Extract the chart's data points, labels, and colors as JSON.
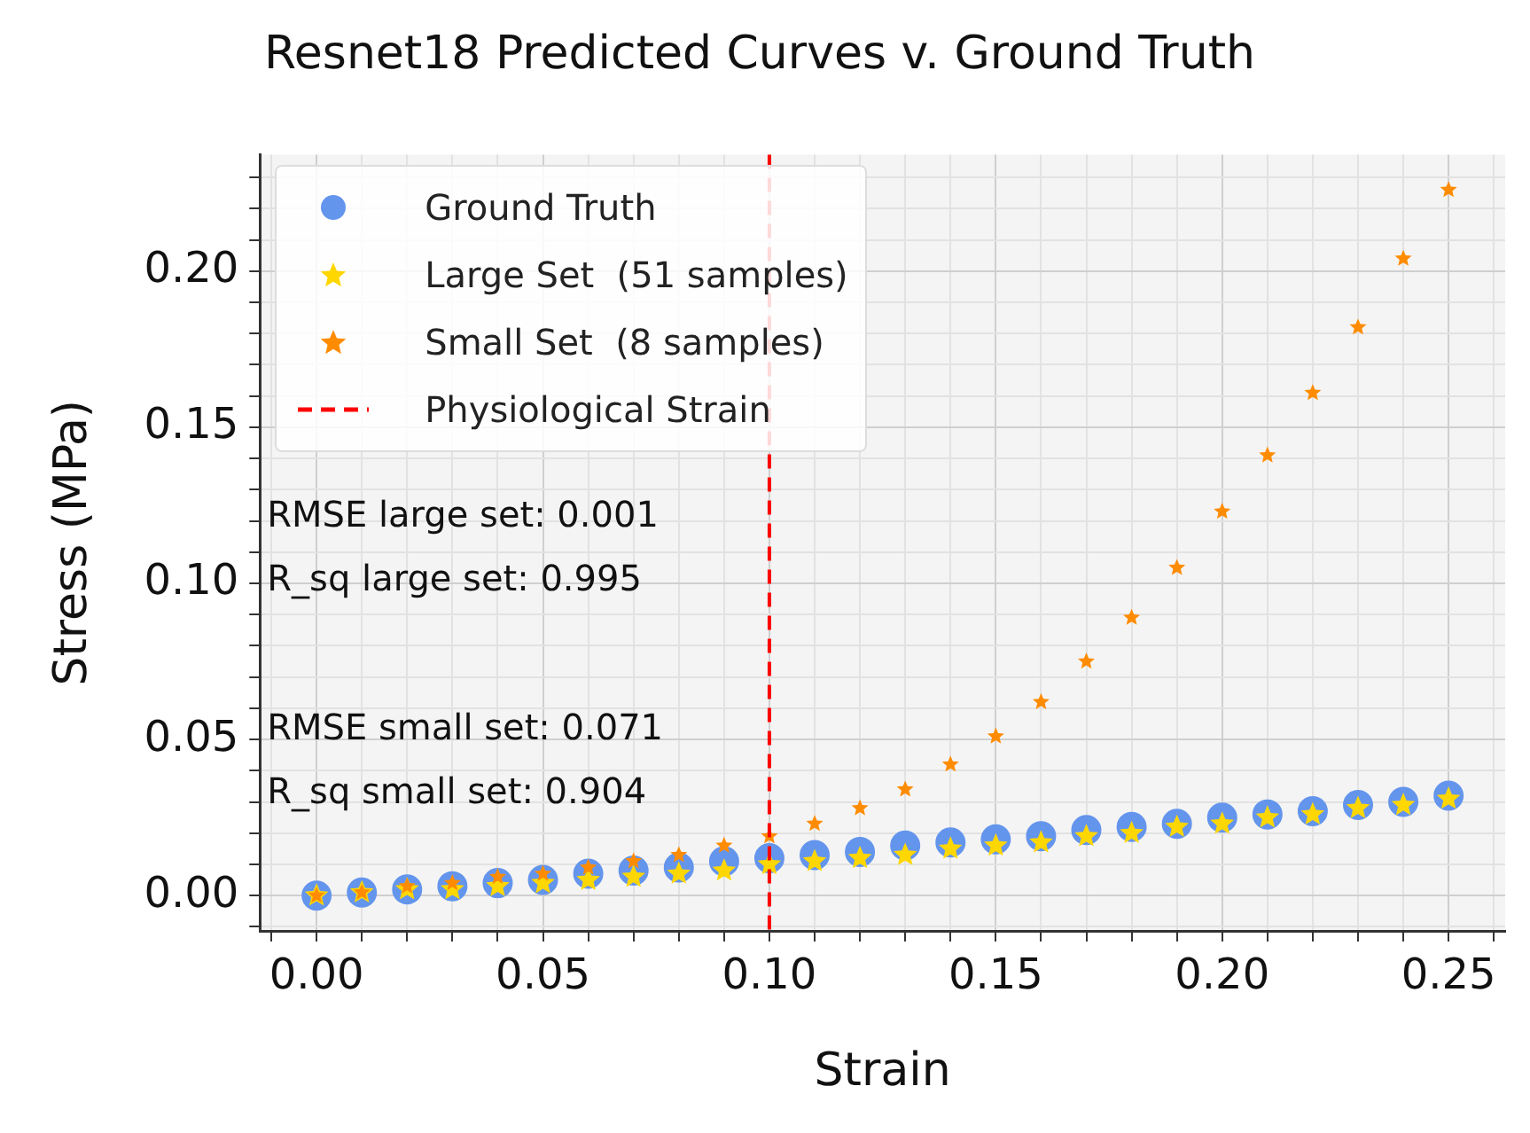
{
  "chart_data": {
    "type": "scatter",
    "title": "Resnet18 Predicted Curves v. Ground Truth",
    "xlabel": "Strain",
    "ylabel": "Stress (MPa)",
    "x": [
      0,
      0.01,
      0.02,
      0.03,
      0.04,
      0.05,
      0.06,
      0.07,
      0.08,
      0.09,
      0.1,
      0.11,
      0.12,
      0.13,
      0.14,
      0.15,
      0.16,
      0.17,
      0.18,
      0.19,
      0.2,
      0.21,
      0.22,
      0.23,
      0.24,
      0.25
    ],
    "series": [
      {
        "name": "Ground Truth",
        "color": "#6495ed",
        "marker": "circle",
        "values": [
          0,
          0.001,
          0.002,
          0.003,
          0.004,
          0.005,
          0.007,
          0.008,
          0.009,
          0.011,
          0.012,
          0.013,
          0.014,
          0.016,
          0.017,
          0.018,
          0.019,
          0.021,
          0.022,
          0.023,
          0.025,
          0.026,
          0.027,
          0.029,
          0.03,
          0.032
        ]
      },
      {
        "name": "Large Set  (51 samples)",
        "color": "#ffd700",
        "marker": "star",
        "values": [
          0,
          0.001,
          0.002,
          0.002,
          0.003,
          0.004,
          0.005,
          0.006,
          0.007,
          0.008,
          0.01,
          0.011,
          0.012,
          0.013,
          0.015,
          0.016,
          0.017,
          0.019,
          0.02,
          0.022,
          0.023,
          0.025,
          0.026,
          0.028,
          0.029,
          0.031
        ]
      },
      {
        "name": "Small Set  (8 samples)",
        "color": "#ff8c00",
        "marker": "star",
        "values": [
          0,
          0.001,
          0.003,
          0.004,
          0.006,
          0.007,
          0.009,
          0.011,
          0.013,
          0.016,
          0.019,
          0.023,
          0.028,
          0.034,
          0.042,
          0.051,
          0.062,
          0.075,
          0.089,
          0.105,
          0.123,
          0.141,
          0.161,
          0.182,
          0.204,
          0.226
        ]
      }
    ],
    "ref_lines": [
      {
        "axis": "x",
        "value": 0.1,
        "label": "Physiological Strain",
        "color": "#ff0000",
        "line_style": "dashed"
      }
    ],
    "annotations": [
      "RMSE large set: 0.001",
      "R_sq large set: 0.995",
      "RMSE small set: 0.071",
      "R_sq small set: 0.904"
    ],
    "xlim": [
      -0.0125,
      0.2625
    ],
    "ylim": [
      -0.0113,
      0.2373
    ],
    "xticks": [
      {
        "value": -0.01,
        "label": null
      },
      {
        "value": 0,
        "label": "0.00"
      },
      {
        "value": 0.01,
        "label": null
      },
      {
        "value": 0.02,
        "label": null
      },
      {
        "value": 0.03,
        "label": null
      },
      {
        "value": 0.04,
        "label": null
      },
      {
        "value": 0.05,
        "label": "0.05"
      },
      {
        "value": 0.06,
        "label": null
      },
      {
        "value": 0.07,
        "label": null
      },
      {
        "value": 0.08,
        "label": null
      },
      {
        "value": 0.09,
        "label": null
      },
      {
        "value": 0.1,
        "label": "0.10"
      },
      {
        "value": 0.11,
        "label": null
      },
      {
        "value": 0.12,
        "label": null
      },
      {
        "value": 0.13,
        "label": null
      },
      {
        "value": 0.14,
        "label": null
      },
      {
        "value": 0.15,
        "label": "0.15"
      },
      {
        "value": 0.16,
        "label": null
      },
      {
        "value": 0.17,
        "label": null
      },
      {
        "value": 0.18,
        "label": null
      },
      {
        "value": 0.19,
        "label": null
      },
      {
        "value": 0.2,
        "label": "0.20"
      },
      {
        "value": 0.21,
        "label": null
      },
      {
        "value": 0.22,
        "label": null
      },
      {
        "value": 0.23,
        "label": null
      },
      {
        "value": 0.24,
        "label": null
      },
      {
        "value": 0.25,
        "label": "0.25"
      },
      {
        "value": 0.26,
        "label": null
      }
    ],
    "yticks": [
      {
        "value": -0.01,
        "label": null
      },
      {
        "value": 0,
        "label": "0.00"
      },
      {
        "value": 0.01,
        "label": null
      },
      {
        "value": 0.02,
        "label": null
      },
      {
        "value": 0.03,
        "label": null
      },
      {
        "value": 0.04,
        "label": null
      },
      {
        "value": 0.05,
        "label": "0.05"
      },
      {
        "value": 0.06,
        "label": null
      },
      {
        "value": 0.07,
        "label": null
      },
      {
        "value": 0.08,
        "label": null
      },
      {
        "value": 0.09,
        "label": null
      },
      {
        "value": 0.1,
        "label": "0.10"
      },
      {
        "value": 0.11,
        "label": null
      },
      {
        "value": 0.12,
        "label": null
      },
      {
        "value": 0.13,
        "label": null
      },
      {
        "value": 0.14,
        "label": null
      },
      {
        "value": 0.15,
        "label": "0.15"
      },
      {
        "value": 0.16,
        "label": null
      },
      {
        "value": 0.17,
        "label": null
      },
      {
        "value": 0.18,
        "label": null
      },
      {
        "value": 0.19,
        "label": null
      },
      {
        "value": 0.2,
        "label": "0.20"
      },
      {
        "value": 0.21,
        "label": null
      },
      {
        "value": 0.22,
        "label": null
      },
      {
        "value": 0.23,
        "label": null
      }
    ],
    "grid": true,
    "legend": "top left"
  }
}
